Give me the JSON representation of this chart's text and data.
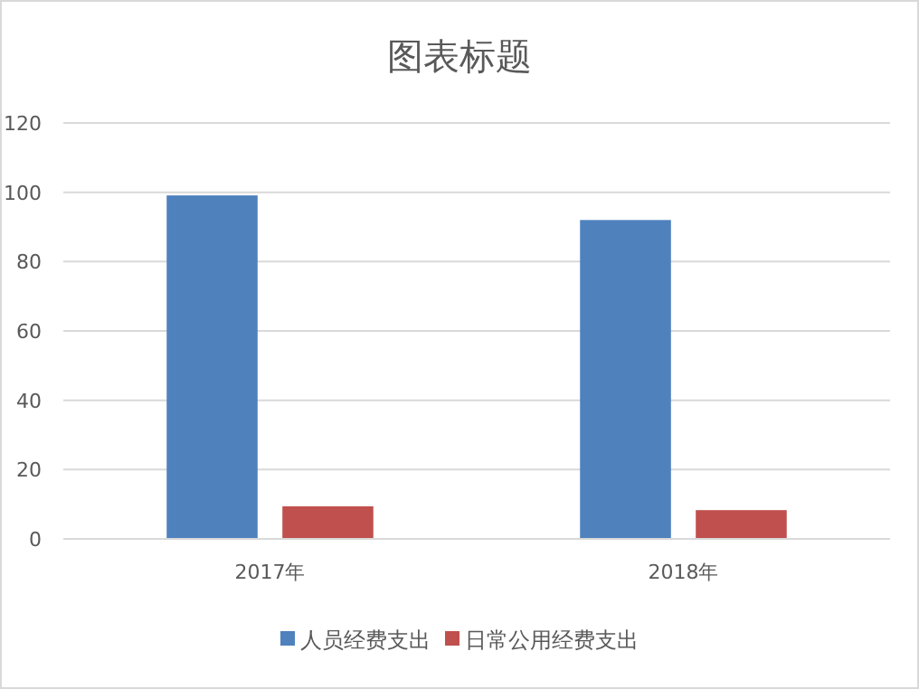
{
  "chart_data": {
    "type": "bar",
    "title": "图表标题",
    "categories": [
      "2017年",
      "2018年"
    ],
    "series": [
      {
        "name": "人员经费支出",
        "color": "#4f81bd",
        "values": [
          99.1,
          92
        ]
      },
      {
        "name": "日常公用经费支出",
        "color": "#c0504d",
        "values": [
          9.4,
          8.3
        ]
      }
    ],
    "ylim": [
      0,
      120
    ],
    "yticks": [
      0,
      20,
      40,
      60,
      80,
      100,
      120
    ],
    "grid": "y",
    "legend": "bottom"
  }
}
